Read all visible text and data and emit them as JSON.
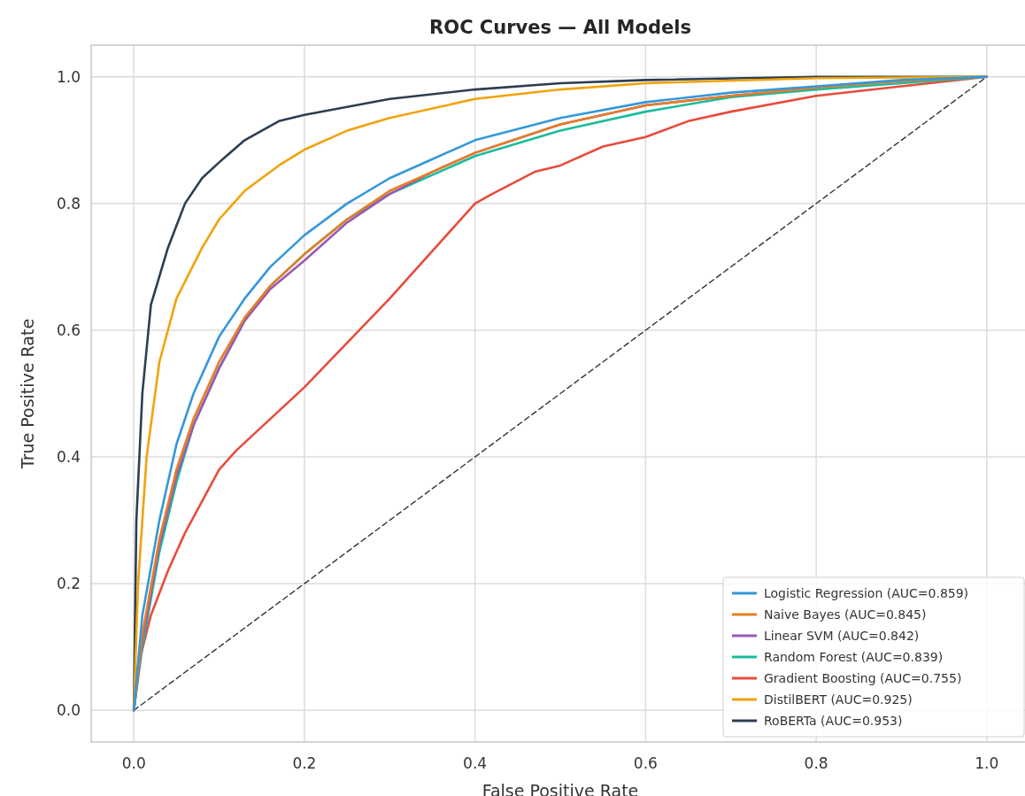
{
  "chart_data": {
    "type": "line",
    "title": "ROC Curves — All Models",
    "xlabel": "False Positive Rate",
    "ylabel": "True Positive Rate",
    "xlim": [
      -0.05,
      1.05
    ],
    "ylim": [
      -0.05,
      1.05
    ],
    "xticks": [
      {
        "value": 0,
        "label": "0.0"
      },
      0.2,
      0.4,
      0.6,
      0.8,
      {
        "value": 1,
        "label": "1.0"
      }
    ],
    "yticks": [
      {
        "value": 0,
        "label": "0.0"
      },
      0.2,
      0.4,
      0.6,
      0.8,
      {
        "value": 1,
        "label": "1.0"
      }
    ],
    "grid": true,
    "legend": "bottom right",
    "line_style": "solid",
    "marker": "none",
    "series": [
      {
        "name": "Logistic Regression (AUC=0.859)",
        "color": "#3498db",
        "x": [
          0,
          0.01,
          0.03,
          0.05,
          0.07,
          0.1,
          0.13,
          0.16,
          0.2,
          0.25,
          0.3,
          0.35,
          0.4,
          0.5,
          0.6,
          0.7,
          0.8,
          0.9,
          1
        ],
        "values": [
          0,
          0.15,
          0.3,
          0.42,
          0.5,
          0.59,
          0.65,
          0.7,
          0.75,
          0.8,
          0.84,
          0.87,
          0.9,
          0.935,
          0.96,
          0.975,
          0.985,
          0.995,
          1
        ]
      },
      {
        "name": "Naive Bayes (AUC=0.845)",
        "color": "#e67e22",
        "x": [
          0,
          0.01,
          0.03,
          0.05,
          0.07,
          0.1,
          0.13,
          0.16,
          0.2,
          0.25,
          0.3,
          0.35,
          0.4,
          0.5,
          0.6,
          0.7,
          0.8,
          0.9,
          1
        ],
        "values": [
          0,
          0.12,
          0.27,
          0.38,
          0.46,
          0.55,
          0.62,
          0.67,
          0.72,
          0.775,
          0.82,
          0.85,
          0.88,
          0.925,
          0.955,
          0.97,
          0.983,
          0.993,
          1
        ]
      },
      {
        "name": "Linear SVM (AUC=0.842)",
        "color": "#9b59b6",
        "x": [
          0,
          0.01,
          0.03,
          0.05,
          0.07,
          0.1,
          0.13,
          0.16,
          0.2,
          0.25,
          0.3,
          0.35,
          0.4,
          0.5,
          0.6,
          0.7,
          0.8
        ],
        "values": [
          0,
          0.11,
          0.26,
          0.37,
          0.45,
          0.54,
          0.615,
          0.665,
          0.71,
          0.77,
          0.815,
          0.85,
          0.88,
          0.925,
          0.955,
          0.97,
          0.983
        ]
      },
      {
        "name": "Random Forest (AUC=0.839)",
        "color": "#1abc9c",
        "x": [
          0,
          0.01,
          0.03,
          0.05,
          0.07,
          0.1,
          0.13,
          0.16,
          0.2,
          0.25,
          0.3,
          0.35,
          0.4,
          0.5,
          0.6,
          0.7,
          0.8,
          0.9,
          1
        ],
        "values": [
          0,
          0.1,
          0.25,
          0.36,
          0.45,
          0.54,
          0.615,
          0.67,
          0.72,
          0.775,
          0.815,
          0.845,
          0.875,
          0.915,
          0.945,
          0.968,
          0.98,
          0.99,
          1
        ]
      },
      {
        "name": "Gradient Boosting (AUC=0.755)",
        "color": "#e74c3c",
        "x": [
          0,
          0.005,
          0.02,
          0.04,
          0.06,
          0.08,
          0.1,
          0.12,
          0.2,
          0.3,
          0.4,
          0.42,
          0.47,
          0.5,
          0.55,
          0.6,
          0.65,
          0.7,
          0.8,
          0.9,
          1
        ],
        "values": [
          0,
          0.07,
          0.15,
          0.22,
          0.28,
          0.33,
          0.38,
          0.41,
          0.51,
          0.65,
          0.8,
          0.815,
          0.85,
          0.86,
          0.89,
          0.905,
          0.93,
          0.945,
          0.97,
          0.985,
          1
        ]
      },
      {
        "name": "DistilBERT (AUC=0.925)",
        "color": "#f0a30a",
        "x": [
          0,
          0.005,
          0.015,
          0.03,
          0.05,
          0.08,
          0.1,
          0.13,
          0.17,
          0.2,
          0.25,
          0.3,
          0.4,
          0.5,
          0.6,
          0.8,
          1
        ],
        "values": [
          0,
          0.2,
          0.4,
          0.55,
          0.65,
          0.73,
          0.775,
          0.82,
          0.86,
          0.885,
          0.915,
          0.935,
          0.965,
          0.98,
          0.99,
          0.998,
          1
        ]
      },
      {
        "name": "RoBERTa (AUC=0.953)",
        "color": "#2c3e50",
        "x": [
          0,
          0.003,
          0.01,
          0.02,
          0.04,
          0.06,
          0.08,
          0.1,
          0.13,
          0.17,
          0.2,
          0.3,
          0.4,
          0.5,
          0.6,
          0.8,
          1
        ],
        "values": [
          0,
          0.3,
          0.5,
          0.64,
          0.73,
          0.8,
          0.84,
          0.865,
          0.9,
          0.93,
          0.94,
          0.965,
          0.98,
          0.99,
          0.995,
          1,
          1
        ]
      },
      {
        "color": "#333333",
        "line_style": "dashed",
        "x": [
          0,
          1
        ],
        "values": [
          0,
          1
        ]
      }
    ]
  }
}
